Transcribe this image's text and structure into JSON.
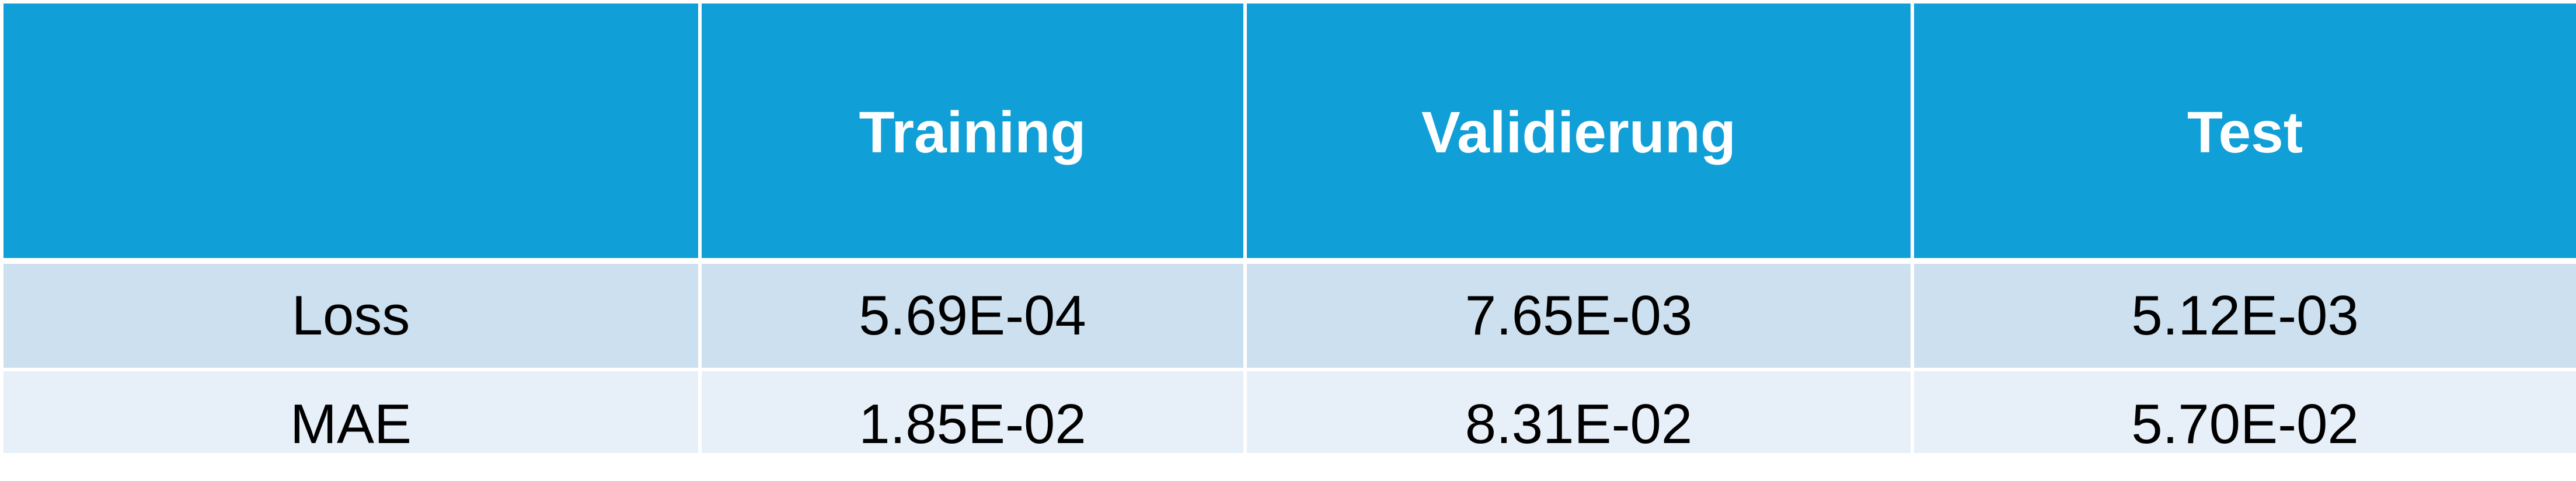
{
  "table": {
    "columns": [
      "",
      "Training",
      "Validierung",
      "Test"
    ],
    "rows": [
      {
        "label": "Loss",
        "values": [
          "5.69E-04",
          "7.65E-03",
          "5.12E-03"
        ]
      },
      {
        "label": "MAE",
        "values": [
          "1.85E-02",
          "8.31E-02",
          "5.70E-02"
        ]
      }
    ]
  },
  "colors": {
    "header_bg": "#119fd7",
    "header_text": "#ffffff",
    "row_odd_bg": "#cde0ef",
    "row_even_bg": "#e7eff8",
    "cell_text": "#000000",
    "border": "#ffffff"
  }
}
